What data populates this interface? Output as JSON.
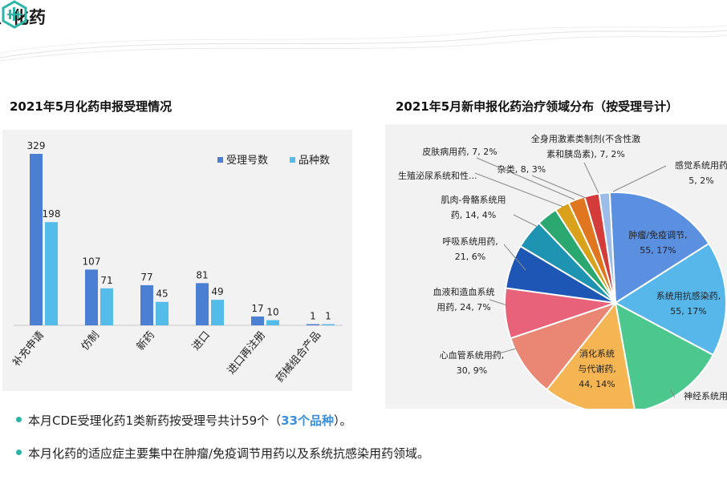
{
  "header": {
    "title": "、化药"
  },
  "colors": {
    "accent": "#2bb5a8",
    "highlight": "#3a8fd8"
  },
  "bar_chart_title": "2021年5月化药申报受理情况",
  "pie_chart_title": "2021年5月新申报化药治疗领域分布（按受理号计）",
  "chart_data": [
    {
      "type": "bar",
      "title": "2021年5月化药申报受理情况",
      "categories": [
        "补充申请",
        "仿制",
        "新药",
        "进口",
        "进口再注册",
        "药械组合产品"
      ],
      "series": [
        {
          "name": "受理号数",
          "color": "#4a7fd4",
          "values": [
            329,
            107,
            77,
            81,
            17,
            1
          ]
        },
        {
          "name": "品种数",
          "color": "#54bce8",
          "values": [
            198,
            71,
            45,
            49,
            10,
            1
          ]
        }
      ],
      "legend": "top-right",
      "grid": false
    },
    {
      "type": "pie",
      "title": "2021年5月新申报化药治疗领域分布（按受理号计）",
      "slices": [
        {
          "label": "肿瘤/免疫调节,",
          "value": 55,
          "pct": "17%",
          "color": "#5b8fe0",
          "text": "55, 17%"
        },
        {
          "label": "系统用抗感染药,",
          "value": 55,
          "pct": "17%",
          "color": "#57b6ea",
          "text": "55, 17%"
        },
        {
          "label": "神经系统用",
          "value": 47,
          "pct": "15%",
          "color": "#4cc88e",
          "text": ""
        },
        {
          "label": "消化系统与代谢药,",
          "value": 44,
          "pct": "14%",
          "color": "#f5b553",
          "text": "44, 14%"
        },
        {
          "label": "心血管系统用药,",
          "value": 30,
          "pct": "9%",
          "color": "#ea8674",
          "text": "30, 9%"
        },
        {
          "label": "血液和造血系统用药,",
          "value": 24,
          "pct": "7%",
          "color": "#e8627a",
          "text": "24, 7%"
        },
        {
          "label": "呼吸系统用药,",
          "value": 21,
          "pct": "6%",
          "color": "#1e56b5",
          "text": "21, 6%"
        },
        {
          "label": "肌肉-骨骼系统用药,",
          "value": 14,
          "pct": "4%",
          "color": "#1f93b2",
          "text": "14, 4%"
        },
        {
          "label": "生殖泌尿系统和性...",
          "value": 10,
          "pct": "3%",
          "color": "#2aa870",
          "text": ""
        },
        {
          "label": "皮肤病用药,",
          "value": 7,
          "pct": "2%",
          "color": "#d9a21a",
          "text": "7, 2%"
        },
        {
          "label": "杂类,",
          "value": 8,
          "pct": "3%",
          "color": "#e0761f",
          "text": "8, 3%"
        },
        {
          "label": "全身用激素类制剂(不含性激素和胰岛素),",
          "value": 7,
          "pct": "2%",
          "color": "#d43b3b",
          "text": "7, 2%"
        },
        {
          "label": "感觉系统用药",
          "value": 5,
          "pct": "2%",
          "color": "#9dbde8",
          "text": "5, 2%"
        }
      ],
      "labels": {
        "tumor": [
          "肿瘤/免疫调节,",
          "55, 17%"
        ],
        "antiinf": [
          "系统用抗感染药,",
          "55, 17%"
        ],
        "neuro": [
          "神经系统用"
        ],
        "digest": [
          "消化系统",
          "与代谢药,",
          "44, 14%"
        ],
        "cardio": [
          "心血管系统用药,",
          "30, 9%"
        ],
        "blood": [
          "血液和造血系统",
          "用药, 24, 7%"
        ],
        "resp": [
          "呼吸系统用药,",
          "21, 6%"
        ],
        "musc": [
          "肌肉-骨骼系统用",
          "药, 14, 4%"
        ],
        "repro": [
          "生殖泌尿系统和性..."
        ],
        "derm": [
          "皮肤病用药, 7, 2%"
        ],
        "misc": [
          "杂类, 8, 3%"
        ],
        "hormone": [
          "全身用激素类制剂(不含性激",
          "素和胰岛素), 7, 2%"
        ],
        "sense": [
          "感觉系统用药",
          "5, 2%"
        ]
      }
    }
  ],
  "bullets": [
    {
      "pre": "本月CDE受理化药1类新药按受理号共计59个（",
      "hl": "33个品种",
      "post": "）。"
    },
    {
      "pre": "本月化药的适应症主要集中在肿瘤/免疫调节用药以及系统抗感染用药领域。",
      "hl": "",
      "post": ""
    }
  ]
}
